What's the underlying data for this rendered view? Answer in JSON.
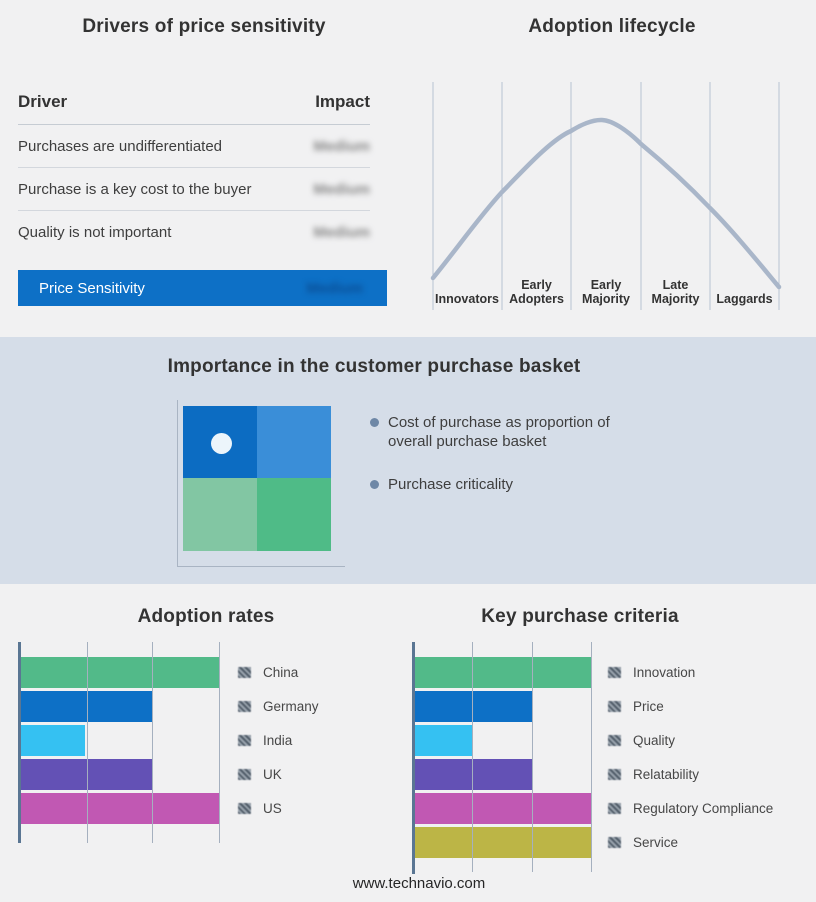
{
  "page": {
    "footer_text": "www.technavio.com",
    "background": "#f1f1f2",
    "band_background": "#d5dde8",
    "accent_blue": "#0d70c6"
  },
  "drivers_panel": {
    "title": "Drivers of price sensitivity",
    "columns": [
      "Driver",
      "Impact"
    ],
    "rows": [
      {
        "driver": "Purchases are undifferentiated",
        "impact": "Medium",
        "impact_obscured": true
      },
      {
        "driver": "Purchase is a key cost to the buyer",
        "impact": "Medium",
        "impact_obscured": true
      },
      {
        "driver": "Quality is not important",
        "impact": "Medium",
        "impact_obscured": true
      }
    ],
    "summary_row": {
      "label": "Price Sensitivity",
      "impact": "Medium",
      "impact_obscured": true,
      "background": "#0d70c6"
    }
  },
  "basket_panel": {
    "title": "Importance in the customer purchase basket",
    "bullets": [
      "Cost of purchase as proportion of overall purchase basket",
      "Purchase criticality"
    ],
    "quadrant_colors": {
      "top_left": "#0c6cc2",
      "top_right": "#3a8ed8",
      "bottom_left": "#82c6a3",
      "bottom_right": "#4fbb87",
      "marker_dot": "#ecf5fb"
    }
  },
  "chart_data": [
    {
      "id": "adoption-lifecycle",
      "type": "line",
      "title": "Adoption lifecycle",
      "categories": [
        "Innovators",
        "Early Adopters",
        "Early Majority",
        "Late Majority",
        "Laggards"
      ],
      "curve": "bell",
      "peak_category": "Early Majority",
      "curve_color": "#a9b6c9",
      "gridline_color": "#b6c2d2",
      "points_norm": [
        [
          0.0,
          0.15
        ],
        [
          0.2,
          0.61
        ],
        [
          0.4,
          0.94
        ],
        [
          0.48,
          1.0
        ],
        [
          0.6,
          0.88
        ],
        [
          0.8,
          0.53
        ],
        [
          1.0,
          0.1
        ]
      ]
    },
    {
      "id": "adoption-rates",
      "type": "bar",
      "orientation": "horizontal",
      "title": "Adoption rates",
      "categories": [
        "China",
        "Germany",
        "India",
        "UK",
        "US"
      ],
      "values": [
        3,
        2,
        1,
        2,
        3
      ],
      "max": 3,
      "xlim": [
        0,
        3
      ],
      "gridlines": true,
      "legend_position": "right",
      "colors": [
        "#52ba89",
        "#0d70c6",
        "#35c1f2",
        "#6351b5",
        "#c158b3"
      ]
    },
    {
      "id": "key-purchase-criteria",
      "type": "bar",
      "orientation": "horizontal",
      "title": "Key purchase criteria",
      "categories": [
        "Innovation",
        "Price",
        "Quality",
        "Relatability",
        "Regulatory Compliance",
        "Service"
      ],
      "values": [
        3,
        2,
        1,
        2,
        3,
        3
      ],
      "max": 3,
      "xlim": [
        0,
        3
      ],
      "gridlines": true,
      "legend_position": "right",
      "colors": [
        "#52ba89",
        "#0d70c6",
        "#35c1f2",
        "#6351b5",
        "#c158b3",
        "#bcb546"
      ]
    }
  ]
}
